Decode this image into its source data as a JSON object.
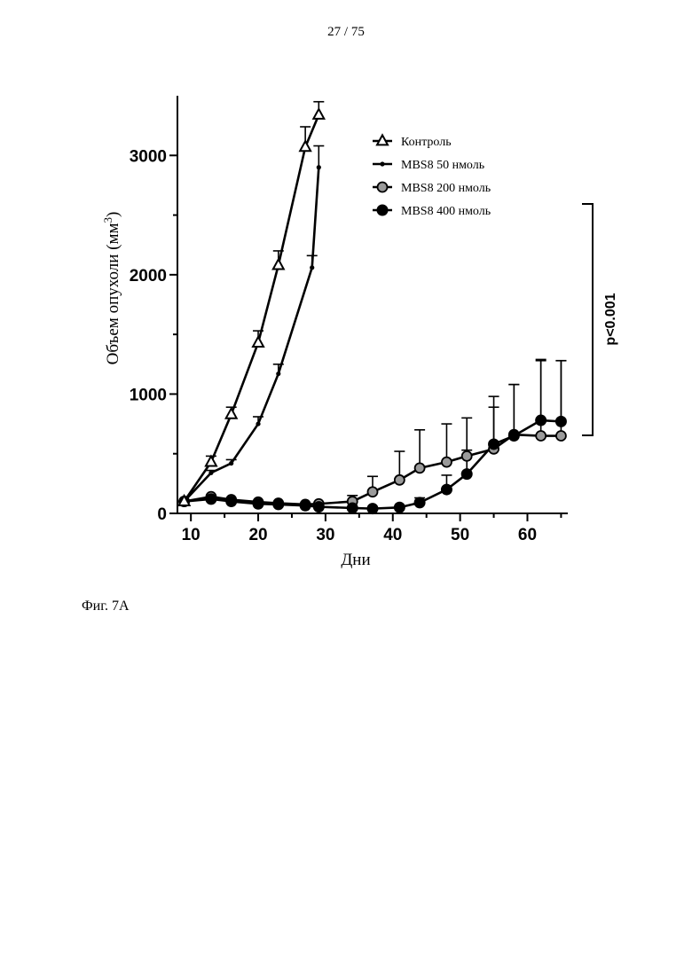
{
  "page": {
    "number": "27 / 75",
    "caption": "Фиг. 7A"
  },
  "chart_data": {
    "type": "line",
    "xlabel": "Дни",
    "ylabel": "Объем опухоли (мм",
    "ylabel_superscript": "3",
    "ylabel_suffix": ")",
    "xlim": [
      8,
      66
    ],
    "ylim": [
      0,
      3500
    ],
    "xticks": [
      10,
      20,
      30,
      40,
      50,
      60
    ],
    "yticks": [
      0,
      1000,
      2000,
      3000
    ],
    "grid": false,
    "legend_position": "top-right",
    "annotation": "p<0.001",
    "series": [
      {
        "name": "Контроль",
        "marker": "triangle-open",
        "x": [
          9,
          13,
          16,
          20,
          23,
          27,
          29
        ],
        "y": [
          100,
          430,
          830,
          1430,
          2080,
          3070,
          3340
        ],
        "err": [
          0,
          50,
          60,
          100,
          120,
          170,
          110
        ]
      },
      {
        "name": "MBS8 50 нмоль",
        "marker": "small-dot",
        "x": [
          9,
          13,
          16,
          20,
          23,
          28,
          29
        ],
        "y": [
          100,
          340,
          420,
          750,
          1170,
          2060,
          2900
        ],
        "err": [
          0,
          20,
          30,
          60,
          80,
          100,
          180
        ]
      },
      {
        "name": "MBS8 200 нмоль",
        "marker": "circle-gray",
        "x": [
          9,
          13,
          16,
          20,
          23,
          27,
          29,
          34,
          37,
          41,
          44,
          48,
          51,
          55,
          58,
          62,
          65
        ],
        "y": [
          100,
          140,
          115,
          95,
          85,
          75,
          80,
          100,
          180,
          280,
          380,
          430,
          480,
          540,
          660,
          650,
          650
        ],
        "err": [
          0,
          0,
          0,
          0,
          0,
          0,
          0,
          50,
          130,
          240,
          320,
          320,
          320,
          350,
          420,
          630,
          630
        ]
      },
      {
        "name": "MBS8 400 нмоль",
        "marker": "circle-black",
        "x": [
          9,
          13,
          16,
          20,
          23,
          27,
          29,
          34,
          37,
          41,
          44,
          48,
          51,
          55,
          58,
          62,
          65
        ],
        "y": [
          100,
          120,
          100,
          80,
          75,
          65,
          55,
          45,
          40,
          50,
          90,
          200,
          330,
          580,
          650,
          780,
          770
        ],
        "err": [
          0,
          0,
          0,
          0,
          0,
          0,
          0,
          0,
          0,
          0,
          40,
          120,
          200,
          400,
          430,
          510,
          510
        ]
      }
    ]
  }
}
